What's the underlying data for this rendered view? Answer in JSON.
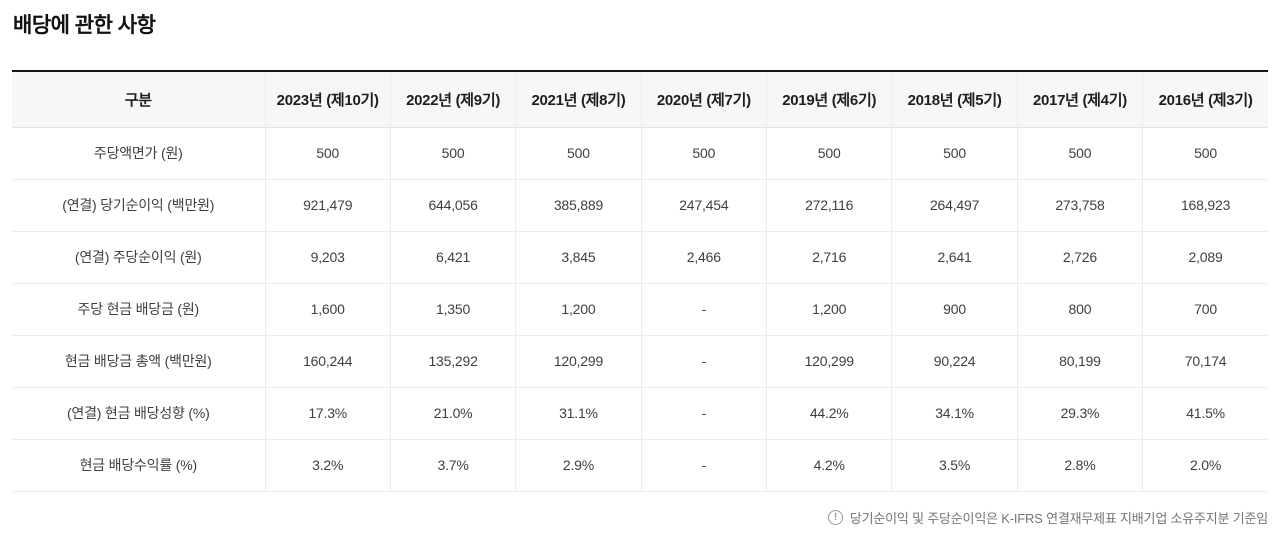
{
  "page": {
    "title": "배당에 관한 사항"
  },
  "table": {
    "corner_header": "구분",
    "columns": [
      "2023년 (제10기)",
      "2022년 (제9기)",
      "2021년 (제8기)",
      "2020년 (제7기)",
      "2019년 (제6기)",
      "2018년 (제5기)",
      "2017년 (제4기)",
      "2016년 (제3기)"
    ],
    "rows": [
      {
        "label": "주당액면가 (원)",
        "values": [
          "500",
          "500",
          "500",
          "500",
          "500",
          "500",
          "500",
          "500"
        ]
      },
      {
        "label": "(연결) 당기순이익 (백만원)",
        "values": [
          "921,479",
          "644,056",
          "385,889",
          "247,454",
          "272,116",
          "264,497",
          "273,758",
          "168,923"
        ]
      },
      {
        "label": "(연결) 주당순이익 (원)",
        "values": [
          "9,203",
          "6,421",
          "3,845",
          "2,466",
          "2,716",
          "2,641",
          "2,726",
          "2,089"
        ]
      },
      {
        "label": "주당 현금 배당금 (원)",
        "values": [
          "1,600",
          "1,350",
          "1,200",
          "-",
          "1,200",
          "900",
          "800",
          "700"
        ]
      },
      {
        "label": "현금 배당금 총액 (백만원)",
        "values": [
          "160,244",
          "135,292",
          "120,299",
          "-",
          "120,299",
          "90,224",
          "80,199",
          "70,174"
        ]
      },
      {
        "label": "(연결) 현금 배당성향 (%)",
        "values": [
          "17.3%",
          "21.0%",
          "31.1%",
          "-",
          "44.2%",
          "34.1%",
          "29.3%",
          "41.5%"
        ]
      },
      {
        "label": "현금 배당수익률 (%)",
        "values": [
          "3.2%",
          "3.7%",
          "2.9%",
          "-",
          "4.2%",
          "3.5%",
          "2.8%",
          "2.0%"
        ]
      }
    ]
  },
  "footnote": {
    "icon_glyph": "!",
    "text": "당기순이익 및 주당순이익은 K-IFRS 연결재무제표 지배기업 소유주지분 기준임"
  },
  "colors": {
    "table_top_border": "#161616",
    "header_background": "#f7f7f8",
    "grid_line": "#ececee",
    "header_text": "#1e1e20",
    "cell_text": "#404043",
    "footnote_text": "#757578"
  }
}
